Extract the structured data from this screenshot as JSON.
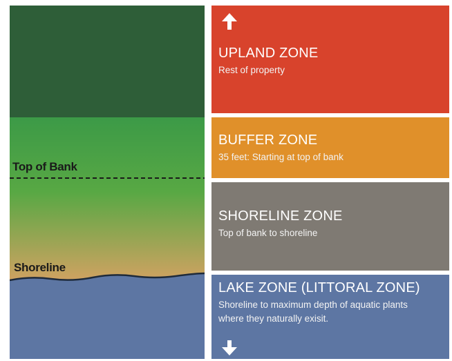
{
  "colors": {
    "upland_bg": "#d8432c",
    "buffer_bg": "#e0902a",
    "shoreline_bg": "#7f7a73",
    "lake_bg": "#5d76a3",
    "dark_green": "#2e5e38",
    "mid_green": "#3e9a48",
    "sand": "#d4a262",
    "water": "#5d76a3"
  },
  "left": {
    "top_of_bank_label": "Top of Bank",
    "shoreline_label": "Shoreline"
  },
  "zones": {
    "upland": {
      "title": "UPLAND ZONE",
      "desc": "Rest of property",
      "icon": "arrow-up-icon"
    },
    "buffer": {
      "title": "BUFFER ZONE",
      "desc": "35 feet: Starting at top of bank"
    },
    "shoreline": {
      "title": "SHORELINE ZONE",
      "desc": "Top of bank to shoreline"
    },
    "lake": {
      "title": "LAKE ZONE (LITTORAL ZONE)",
      "desc": "Shoreline to maximum depth of aquatic plants where they naturally exisit.",
      "icon": "arrow-down-icon"
    }
  }
}
